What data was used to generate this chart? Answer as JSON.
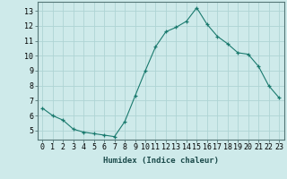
{
  "x": [
    0,
    1,
    2,
    3,
    4,
    5,
    6,
    7,
    8,
    9,
    10,
    11,
    12,
    13,
    14,
    15,
    16,
    17,
    18,
    19,
    20,
    21,
    22,
    23
  ],
  "y": [
    6.5,
    6.0,
    5.7,
    5.1,
    4.9,
    4.8,
    4.7,
    4.6,
    5.6,
    7.3,
    9.0,
    10.6,
    11.6,
    11.9,
    12.3,
    13.2,
    12.1,
    11.3,
    10.8,
    10.2,
    10.1,
    9.3,
    8.0,
    7.2
  ],
  "line_color": "#1a7a6e",
  "marker": "+",
  "marker_size": 3,
  "bg_color": "#ceeaea",
  "grid_color": "#aed4d4",
  "xlabel": "Humidex (Indice chaleur)",
  "ylim": [
    4.4,
    13.6
  ],
  "xlim": [
    -0.5,
    23.5
  ],
  "yticks": [
    5,
    6,
    7,
    8,
    9,
    10,
    11,
    12,
    13
  ],
  "xticks": [
    0,
    1,
    2,
    3,
    4,
    5,
    6,
    7,
    8,
    9,
    10,
    11,
    12,
    13,
    14,
    15,
    16,
    17,
    18,
    19,
    20,
    21,
    22,
    23
  ],
  "label_fontsize": 6.5,
  "tick_fontsize": 6.0
}
